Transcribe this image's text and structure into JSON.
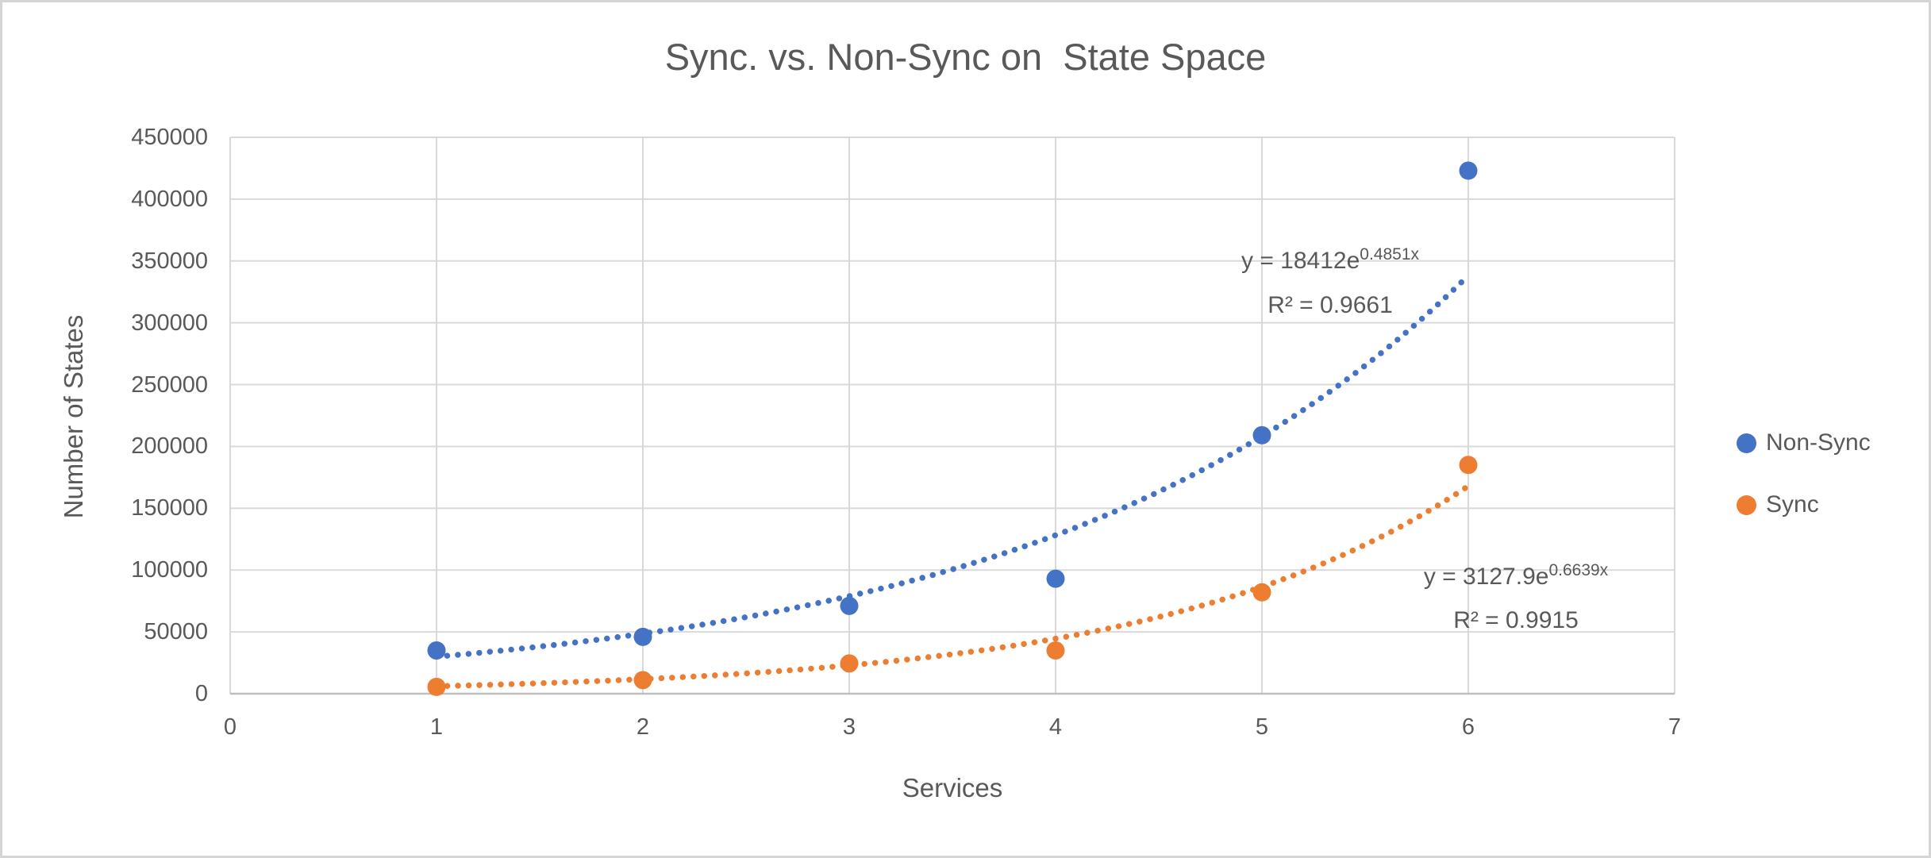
{
  "colors": {
    "text": "#595959",
    "grid": "#D9D9D9",
    "axis_line": "#BFBFBF",
    "page_border": "#D5D5D5",
    "non_sync": "#4472C4",
    "sync": "#ED7D31"
  },
  "chart_data": {
    "type": "scatter",
    "title": "Sync. vs. Non-Sync on  State Space",
    "xlabel": "Services",
    "ylabel": "Number of States",
    "xlim": [
      0,
      7
    ],
    "ylim": [
      0,
      450000
    ],
    "x_ticks": [
      0,
      1,
      2,
      3,
      4,
      5,
      6,
      7
    ],
    "y_ticks": [
      0,
      50000,
      100000,
      150000,
      200000,
      250000,
      300000,
      350000,
      400000,
      450000
    ],
    "grid": true,
    "legend_position": "right",
    "series": [
      {
        "name": "Non-Sync",
        "color": "#4472C4",
        "marker": "circle",
        "x": [
          1,
          2,
          3,
          4,
          5,
          6
        ],
        "y": [
          35000,
          46000,
          71000,
          93000,
          209000,
          423000
        ],
        "trendline": {
          "type": "exponential",
          "a": 18412,
          "b": 0.4851,
          "x_range": [
            1,
            6
          ],
          "style": "dotted",
          "equation_prefix": "y = 18412e",
          "equation_exponent": "0.4851x",
          "r2_label": "R² = 0.9661"
        }
      },
      {
        "name": "Sync",
        "color": "#ED7D31",
        "marker": "circle",
        "x": [
          1,
          2,
          3,
          4,
          5,
          6
        ],
        "y": [
          5500,
          11000,
          24500,
          35000,
          82000,
          185000
        ],
        "trendline": {
          "type": "exponential",
          "a": 3127.9,
          "b": 0.6639,
          "x_range": [
            1,
            6
          ],
          "style": "dotted",
          "equation_prefix": "y = 3127.9e",
          "equation_exponent": "0.6639x",
          "r2_label": "R² = 0.9915"
        }
      }
    ]
  }
}
